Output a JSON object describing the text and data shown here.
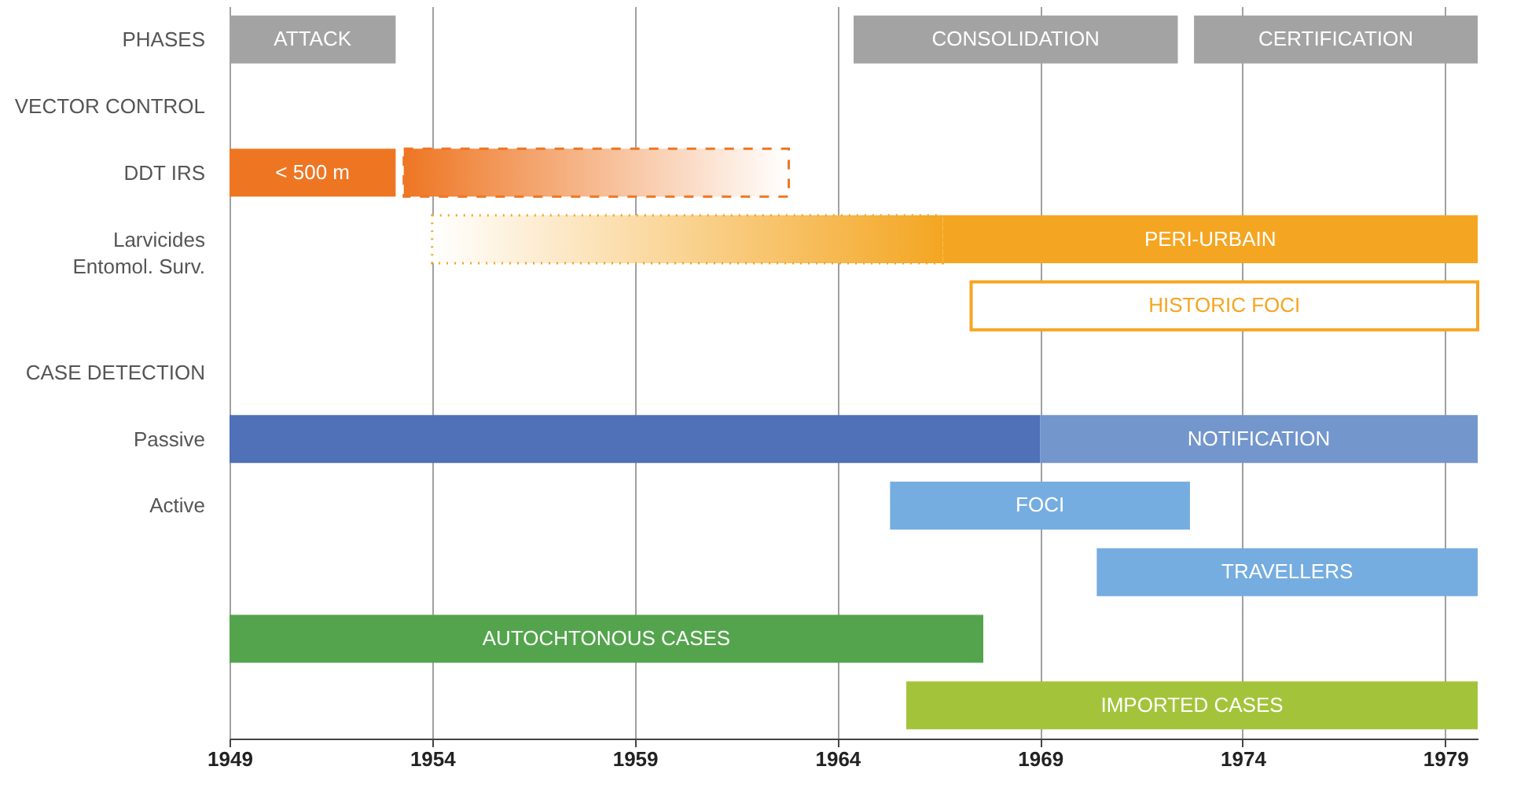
{
  "chart_data": {
    "type": "bar",
    "orientation": "horizontal",
    "grid": "x",
    "xlim": [
      1949,
      1979.8
    ],
    "xticks": [
      1949,
      1954,
      1959,
      1964,
      1969,
      1974,
      1979
    ],
    "categories": [
      "PHASES",
      "VECTOR CONTROL",
      "DDT IRS",
      "Larvicides\nEntomol. Surv.",
      null,
      "CASE DETECTION",
      "Passive",
      "Active",
      null,
      null,
      null
    ],
    "series": [
      {
        "color": "#a3a3a3",
        "base": [
          1949,
          null,
          null,
          null,
          null,
          null,
          null,
          null,
          null,
          null,
          null
        ],
        "values": [
          4.1,
          null,
          null,
          null,
          null,
          null,
          null,
          null,
          null,
          null,
          null
        ],
        "value_labels": [
          "ATTACK",
          null,
          null,
          null,
          null,
          null,
          null,
          null,
          null,
          null,
          null
        ]
      },
      {
        "color": "#a3a3a3",
        "base": [
          1964.4,
          null,
          null,
          null,
          null,
          null,
          null,
          null,
          null,
          null,
          null
        ],
        "values": [
          8.0,
          null,
          null,
          null,
          null,
          null,
          null,
          null,
          null,
          null,
          null
        ],
        "value_labels": [
          "CONSOLIDATION",
          null,
          null,
          null,
          null,
          null,
          null,
          null,
          null,
          null,
          null
        ]
      },
      {
        "color": "#a3a3a3",
        "base": [
          1972.8,
          null,
          null,
          null,
          null,
          null,
          null,
          null,
          null,
          null,
          null
        ],
        "values": [
          7.0,
          null,
          null,
          null,
          null,
          null,
          null,
          null,
          null,
          null,
          null
        ],
        "value_labels": [
          "CERTIFICATION",
          null,
          null,
          null,
          null,
          null,
          null,
          null,
          null,
          null,
          null
        ]
      },
      {
        "color": "#ee7623",
        "base": [
          null,
          null,
          1949,
          null,
          null,
          null,
          null,
          null,
          null,
          null,
          null
        ],
        "values": [
          null,
          null,
          4.1,
          null,
          null,
          null,
          null,
          null,
          null,
          null,
          null
        ],
        "value_labels": [
          null,
          null,
          "< 500 m",
          null,
          null,
          null,
          null,
          null,
          null,
          null,
          null
        ]
      },
      {
        "color": "#ee7623",
        "line_style": "dashed",
        "base": [
          null,
          null,
          1953.3,
          null,
          null,
          null,
          null,
          null,
          null,
          null,
          null
        ],
        "values": [
          null,
          null,
          9.5,
          null,
          null,
          null,
          null,
          null,
          null,
          null,
          null
        ]
      },
      {
        "line_style": "dotted",
        "color": "#f4a622",
        "base": [
          null,
          null,
          null,
          1954,
          null,
          null,
          null,
          null,
          null,
          null,
          null
        ],
        "values": [
          null,
          null,
          null,
          12.6,
          null,
          null,
          null,
          null,
          null,
          null,
          null
        ]
      },
      {
        "color": "#f4a622",
        "base": [
          null,
          null,
          null,
          1966.6,
          null,
          null,
          null,
          null,
          null,
          null,
          null
        ],
        "values": [
          null,
          null,
          null,
          13.2,
          null,
          null,
          null,
          null,
          null,
          null,
          null
        ],
        "value_labels": [
          null,
          null,
          null,
          "PERI-URBAIN",
          null,
          null,
          null,
          null,
          null,
          null,
          null
        ]
      },
      {
        "color": "#f4a622",
        "line_style": "solid",
        "base": [
          null,
          null,
          null,
          null,
          1967.3,
          null,
          null,
          null,
          null,
          null,
          null
        ],
        "values": [
          null,
          null,
          null,
          null,
          12.5,
          null,
          null,
          null,
          null,
          null,
          null
        ],
        "value_labels": [
          null,
          null,
          null,
          null,
          "HISTORIC FOCI",
          null,
          null,
          null,
          null,
          null,
          null
        ]
      },
      {
        "color": "#5070b8",
        "base": [
          null,
          null,
          null,
          null,
          null,
          null,
          1949,
          null,
          null,
          null,
          null
        ],
        "values": [
          null,
          null,
          null,
          null,
          null,
          null,
          20,
          null,
          null,
          null,
          null
        ]
      },
      {
        "color": "#7396cc",
        "base": [
          null,
          null,
          null,
          null,
          null,
          null,
          1969,
          null,
          null,
          null,
          null
        ],
        "values": [
          null,
          null,
          null,
          null,
          null,
          null,
          10.8,
          null,
          null,
          null,
          null
        ],
        "value_labels": [
          null,
          null,
          null,
          null,
          null,
          null,
          "NOTIFICATION",
          null,
          null,
          null,
          null
        ]
      },
      {
        "color": "#75ade0",
        "base": [
          null,
          null,
          null,
          null,
          null,
          null,
          null,
          1965.3,
          null,
          null,
          null
        ],
        "values": [
          null,
          null,
          null,
          null,
          null,
          null,
          null,
          7.4,
          null,
          null,
          null
        ],
        "value_labels": [
          null,
          null,
          null,
          null,
          null,
          null,
          null,
          "FOCI",
          null,
          null,
          null
        ]
      },
      {
        "color": "#75ade0",
        "base": [
          null,
          null,
          null,
          null,
          null,
          null,
          null,
          null,
          1970.4,
          null,
          null
        ],
        "values": [
          null,
          null,
          null,
          null,
          null,
          null,
          null,
          null,
          9.4,
          null,
          null
        ],
        "value_labels": [
          null,
          null,
          null,
          null,
          null,
          null,
          null,
          null,
          "TRAVELLERS",
          null,
          null
        ]
      },
      {
        "color": "#53a44c",
        "base": [
          null,
          null,
          null,
          null,
          null,
          null,
          null,
          null,
          null,
          1949,
          null
        ],
        "values": [
          null,
          null,
          null,
          null,
          null,
          null,
          null,
          null,
          null,
          18.6,
          null
        ],
        "value_labels": [
          null,
          null,
          null,
          null,
          null,
          null,
          null,
          null,
          null,
          "AUTOCHTONOUS CASES",
          null
        ]
      },
      {
        "color": "#a3c43a",
        "base": [
          null,
          null,
          null,
          null,
          null,
          null,
          null,
          null,
          null,
          null,
          1965.7
        ],
        "values": [
          null,
          null,
          null,
          null,
          null,
          null,
          null,
          null,
          null,
          null,
          14.1
        ],
        "value_labels": [
          null,
          null,
          null,
          null,
          null,
          null,
          null,
          null,
          null,
          null,
          "IMPORTED CASES"
        ]
      }
    ]
  }
}
